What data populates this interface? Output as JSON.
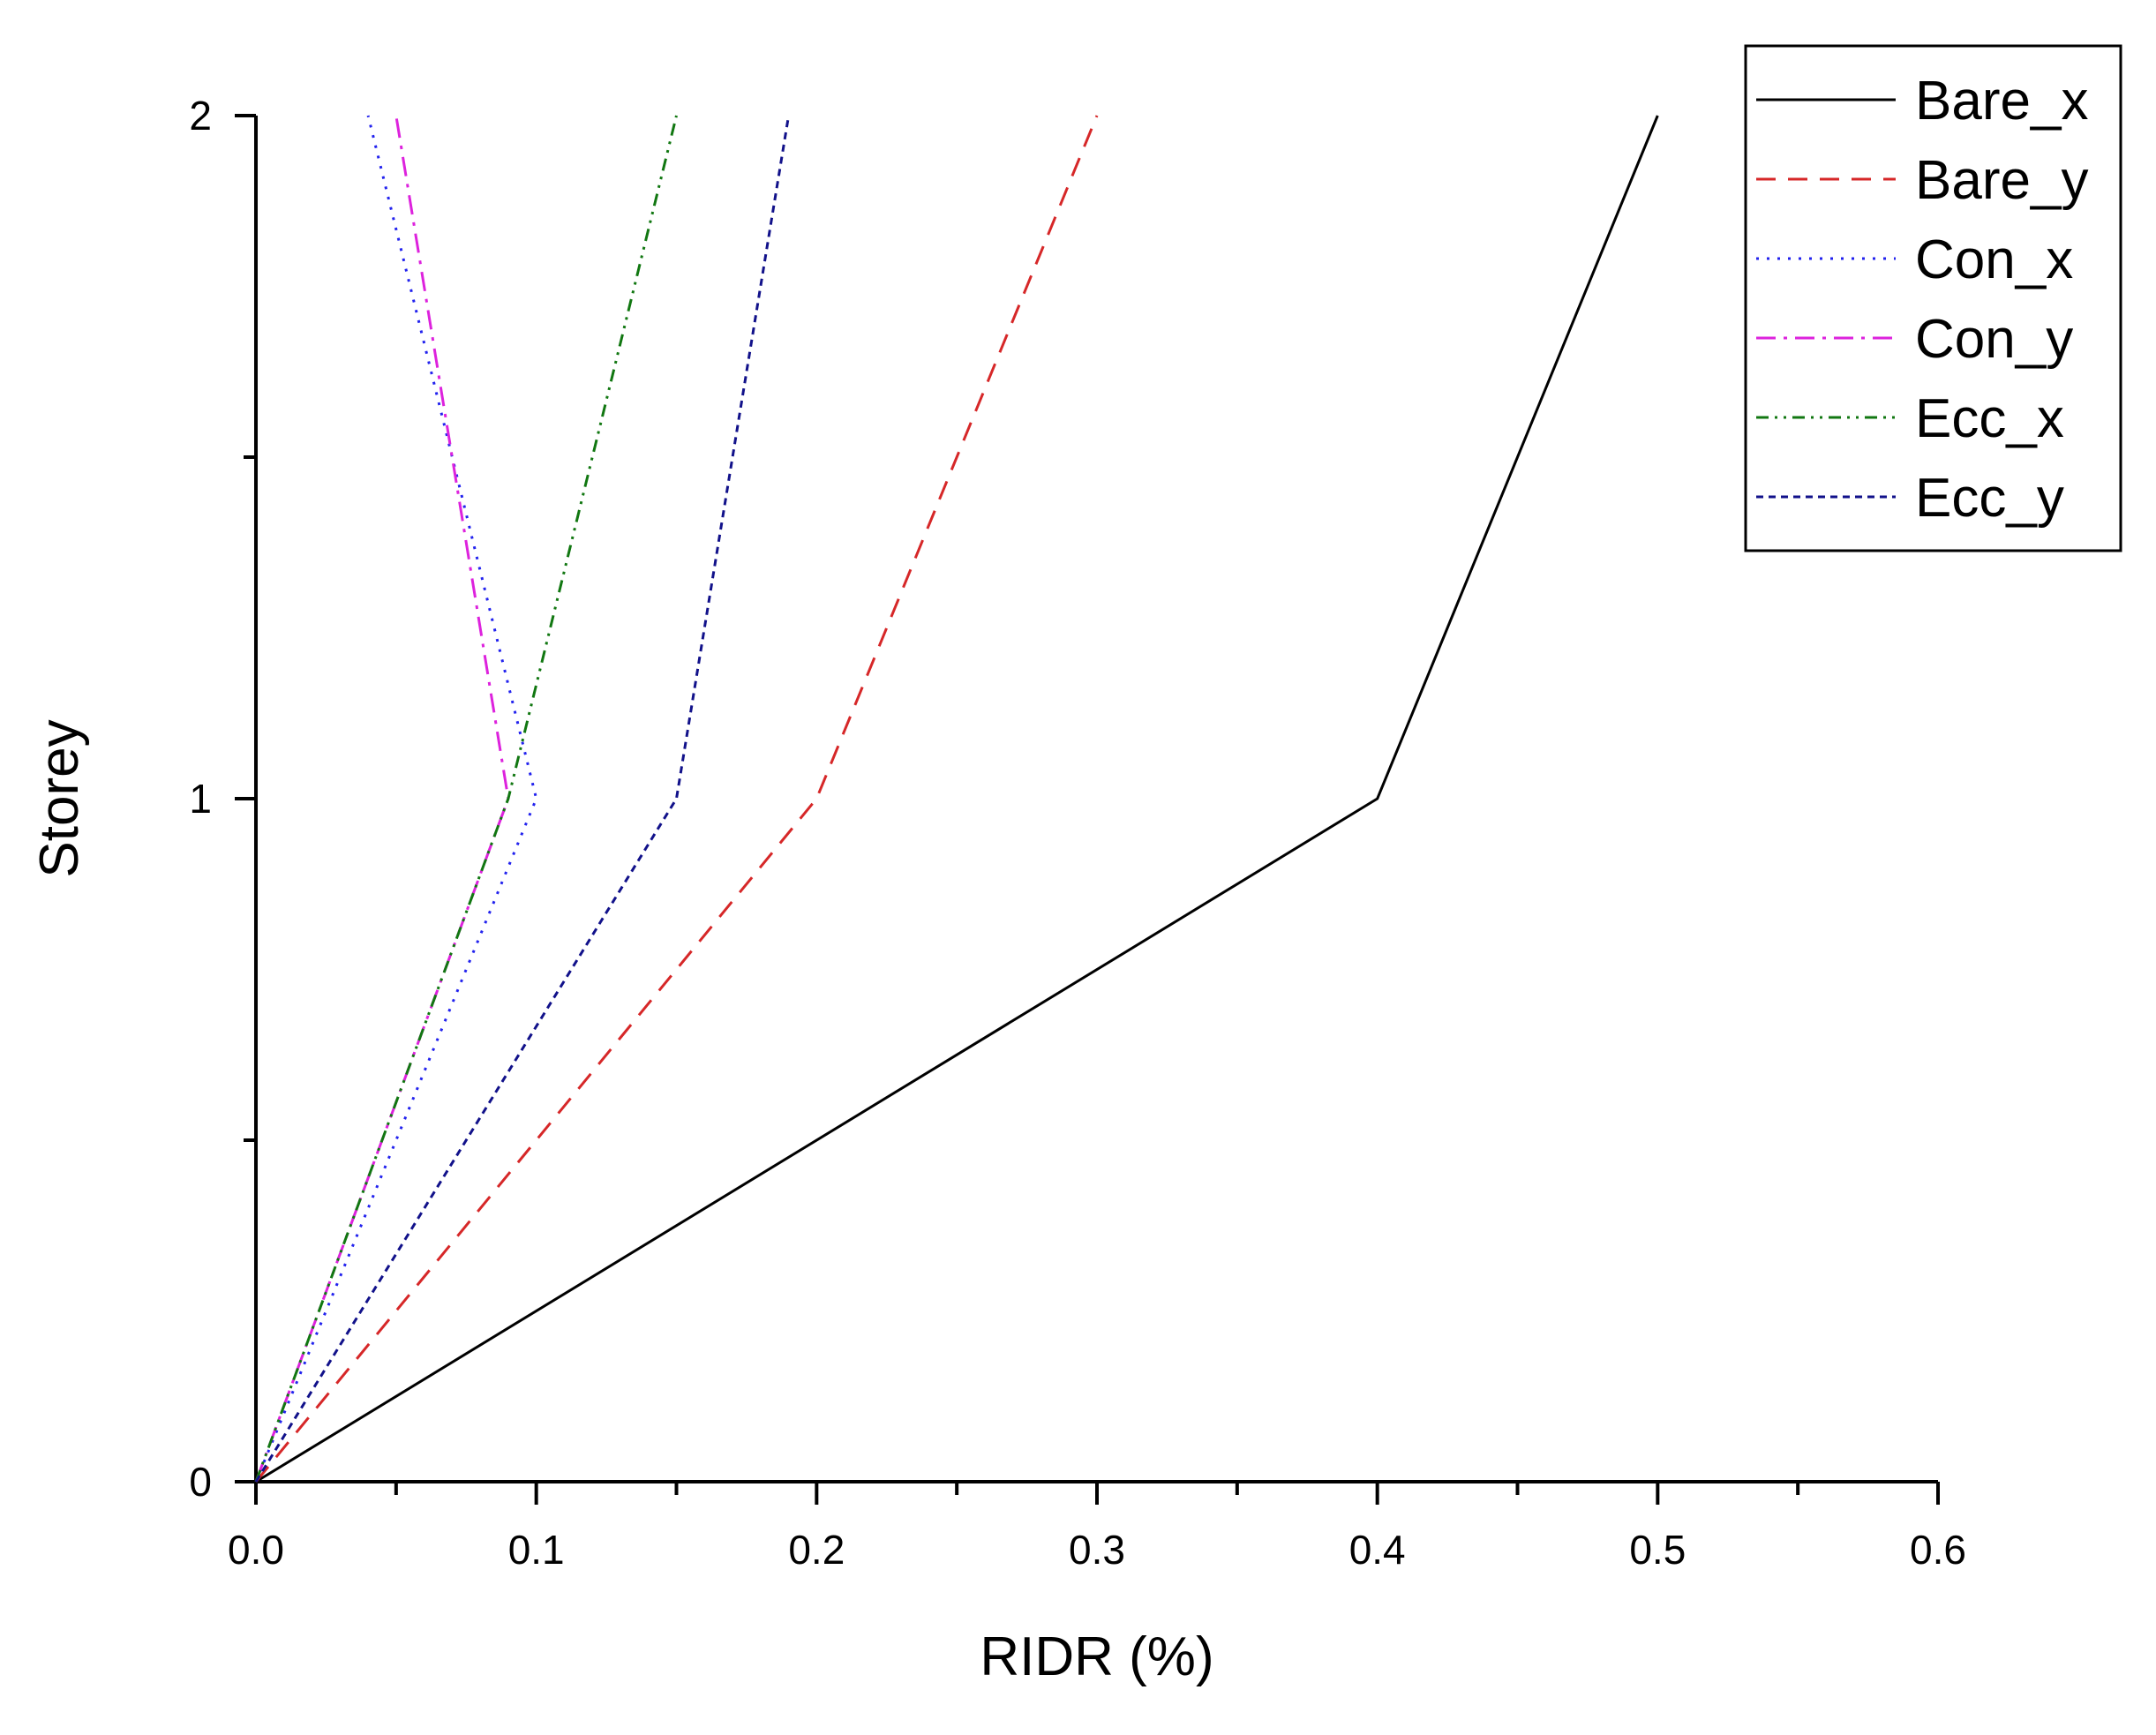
{
  "chart_data": {
    "type": "line",
    "title": "",
    "xlabel": "RIDR (%)",
    "ylabel": "Storey",
    "xlim": [
      0.0,
      0.6
    ],
    "ylim": [
      0,
      2
    ],
    "x_ticks": [
      "0.0",
      "0.1",
      "0.2",
      "0.3",
      "0.4",
      "0.5",
      "0.6"
    ],
    "y_ticks": [
      "0",
      "1",
      "2"
    ],
    "grid": false,
    "legend_position": "top-right",
    "series": [
      {
        "name": "Bare_x",
        "color": "#000000",
        "style": "solid",
        "points": [
          [
            0.0,
            0
          ],
          [
            0.4,
            1
          ],
          [
            0.5,
            2
          ]
        ]
      },
      {
        "name": "Bare_y",
        "color": "#d62728",
        "style": "dashed",
        "points": [
          [
            0.0,
            0
          ],
          [
            0.2,
            1
          ],
          [
            0.3,
            2
          ]
        ]
      },
      {
        "name": "Con_x",
        "color": "#2222ee",
        "style": "dotted",
        "points": [
          [
            0.0,
            0
          ],
          [
            0.1,
            1
          ],
          [
            0.04,
            2
          ]
        ]
      },
      {
        "name": "Con_y",
        "color": "#dd22dd",
        "style": "dashdot",
        "points": [
          [
            0.0,
            0
          ],
          [
            0.09,
            1
          ],
          [
            0.05,
            2
          ]
        ]
      },
      {
        "name": "Ecc_x",
        "color": "#117711",
        "style": "dashdotdot",
        "points": [
          [
            0.0,
            0
          ],
          [
            0.09,
            1
          ],
          [
            0.15,
            2
          ]
        ]
      },
      {
        "name": "Ecc_y",
        "color": "#11118a",
        "style": "shortdash",
        "points": [
          [
            0.0,
            0
          ],
          [
            0.15,
            1
          ],
          [
            0.19,
            2
          ]
        ]
      }
    ]
  }
}
